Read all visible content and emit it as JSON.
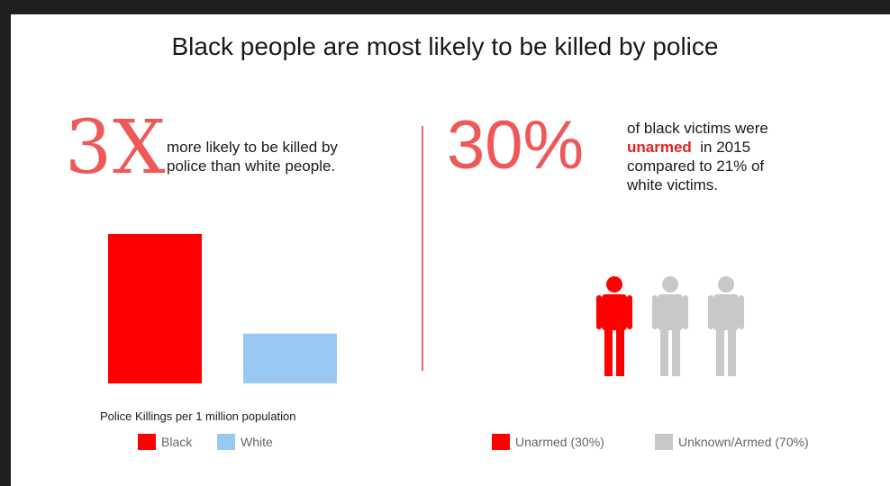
{
  "title": "Black people are most likely to be killed by police",
  "left_stat": {
    "big": "3X",
    "line1": "more likely to be killed by",
    "line2": "police than white people."
  },
  "right_stat": {
    "big": "30%",
    "line1": "of black victims were",
    "highlight": "unarmed",
    "line2_rest": "in 2015",
    "line3": "compared to 21% of",
    "line4": "white victims."
  },
  "colors": {
    "red": "#ff0000",
    "light_blue": "#99c9f2",
    "gray": "#c8c8c8",
    "accent": "#ee5858"
  },
  "chart_data": [
    {
      "type": "bar",
      "title": "Police Killings per 1 million population",
      "categories": [
        "Black",
        "White"
      ],
      "values": [
        3,
        1
      ],
      "colors": [
        "#ff0000",
        "#99c9f2"
      ],
      "legend": [
        "Black",
        "White"
      ],
      "grid": false
    },
    {
      "type": "pictogram",
      "categories": [
        "Unarmed (30%)",
        "Unknown/Armed (70%)"
      ],
      "values": [
        30,
        70
      ],
      "icons": [
        "red",
        "gray",
        "gray"
      ],
      "colors": [
        "#ff0000",
        "#c8c8c8"
      ],
      "legend": [
        "Unarmed (30%)",
        "Unknown/Armed (70%)"
      ]
    }
  ]
}
